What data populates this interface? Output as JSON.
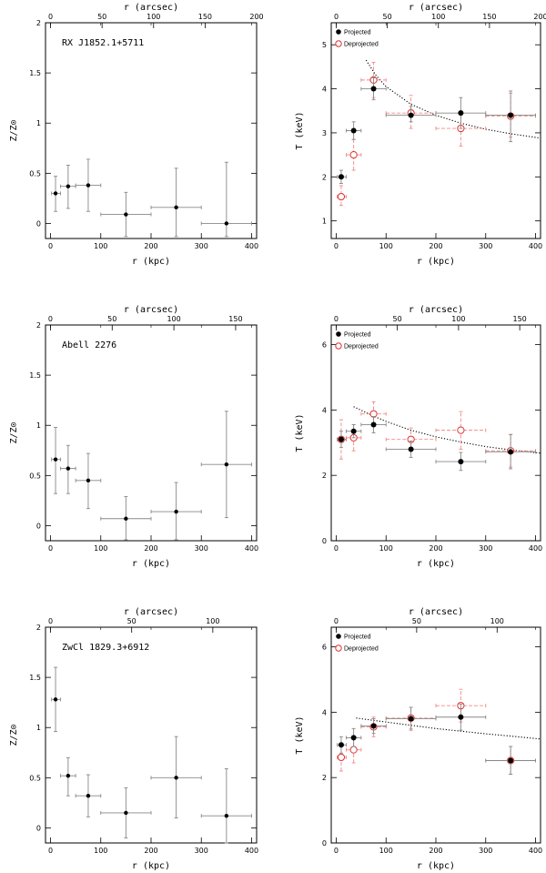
{
  "colors": {
    "projected": "#000000",
    "deprojected": "#e0302c",
    "errorbar_projected": "#888888",
    "errorbar_deprojected": "#f08a86",
    "model": "#000000"
  },
  "chart_data": [
    {
      "type": "scatter",
      "panel": "row1-left",
      "cluster_label": "RX J1852.1+5711",
      "xlabel": "r (kpc)",
      "x2label": "r (arcsec)",
      "ylabel": "Z/Z⊙",
      "xlim": [
        -10,
        410
      ],
      "ylim": [
        -0.15,
        2.0
      ],
      "xticks": [
        0,
        100,
        200,
        300,
        400
      ],
      "yticks": [
        0,
        0.5,
        1,
        1.5,
        2
      ],
      "ytick_labels": [
        "0",
        "0.5",
        "1",
        "1.5",
        "2"
      ],
      "x2lim": [
        -4.9,
        200
      ],
      "x2ticks": [
        0,
        50,
        100,
        150,
        200
      ],
      "series": [
        {
          "points": [
            {
              "x": 10,
              "y": 0.3,
              "xlo": 2,
              "xhi": 20,
              "ylo": 0.12,
              "yhi": 0.47
            },
            {
              "x": 35,
              "y": 0.37,
              "xlo": 20,
              "xhi": 50,
              "ylo": 0.15,
              "yhi": 0.58
            },
            {
              "x": 75,
              "y": 0.38,
              "xlo": 50,
              "xhi": 100,
              "ylo": 0.12,
              "yhi": 0.64
            },
            {
              "x": 150,
              "y": 0.09,
              "xlo": 100,
              "xhi": 200,
              "ylo": -0.13,
              "yhi": 0.31
            },
            {
              "x": 250,
              "y": 0.16,
              "xlo": 200,
              "xhi": 300,
              "ylo": -0.13,
              "yhi": 0.55
            },
            {
              "x": 350,
              "y": 0.0,
              "xlo": 300,
              "xhi": 400,
              "ylo": -0.13,
              "yhi": 0.61
            }
          ]
        }
      ]
    },
    {
      "type": "scatter",
      "panel": "row1-right",
      "xlabel": "r (kpc)",
      "x2label": "r (arcsec)",
      "ylabel": "T (keV)",
      "xlim": [
        -10,
        410
      ],
      "ylim": [
        0.6,
        5.5
      ],
      "xticks": [
        0,
        100,
        200,
        300,
        400
      ],
      "yticks": [
        1,
        2,
        3,
        4,
        5
      ],
      "ytick_labels": [
        "1",
        "2",
        "3",
        "4",
        "5"
      ],
      "x2lim": [
        -4.9,
        200
      ],
      "x2ticks": [
        0,
        50,
        100,
        150,
        200
      ],
      "legend": [
        "Projected",
        "Deprojected"
      ],
      "series": [
        {
          "name": "Projected",
          "points": [
            {
              "x": 10,
              "y": 2.0,
              "xlo": 2,
              "xhi": 20,
              "ylo": 1.85,
              "yhi": 2.15
            },
            {
              "x": 35,
              "y": 3.05,
              "xlo": 20,
              "xhi": 50,
              "ylo": 2.85,
              "yhi": 3.25
            },
            {
              "x": 75,
              "y": 4.0,
              "xlo": 50,
              "xhi": 100,
              "ylo": 3.75,
              "yhi": 4.25
            },
            {
              "x": 150,
              "y": 3.4,
              "xlo": 100,
              "xhi": 200,
              "ylo": 3.25,
              "yhi": 3.6
            },
            {
              "x": 250,
              "y": 3.45,
              "xlo": 200,
              "xhi": 300,
              "ylo": 3.1,
              "yhi": 3.8
            },
            {
              "x": 350,
              "y": 3.4,
              "xlo": 300,
              "xhi": 400,
              "ylo": 2.8,
              "yhi": 3.95
            }
          ]
        },
        {
          "name": "Deprojected",
          "points": [
            {
              "x": 10,
              "y": 1.55,
              "xlo": 2,
              "xhi": 20,
              "ylo": 1.35,
              "yhi": 1.8
            },
            {
              "x": 35,
              "y": 2.5,
              "xlo": 20,
              "xhi": 50,
              "ylo": 2.15,
              "yhi": 2.85
            },
            {
              "x": 75,
              "y": 4.2,
              "xlo": 50,
              "xhi": 100,
              "ylo": 3.8,
              "yhi": 4.6
            },
            {
              "x": 150,
              "y": 3.45,
              "xlo": 100,
              "xhi": 200,
              "ylo": 3.1,
              "yhi": 3.85
            },
            {
              "x": 250,
              "y": 3.1,
              "xlo": 200,
              "xhi": 300,
              "ylo": 2.7,
              "yhi": 3.5
            },
            {
              "x": 350,
              "y": 3.38,
              "xlo": 300,
              "xhi": 400,
              "ylo": 2.9,
              "yhi": 3.9
            }
          ]
        }
      ],
      "model_curve": [
        [
          60,
          4.65
        ],
        [
          80,
          4.3
        ],
        [
          100,
          4.05
        ],
        [
          150,
          3.65
        ],
        [
          200,
          3.4
        ],
        [
          250,
          3.22
        ],
        [
          300,
          3.08
        ],
        [
          350,
          2.98
        ],
        [
          410,
          2.88
        ]
      ]
    },
    {
      "type": "scatter",
      "panel": "row2-left",
      "cluster_label": "Abell 2276",
      "xlabel": "r (kpc)",
      "x2label": "r (arcsec)",
      "ylabel": "Z/Z⊙",
      "xlim": [
        -10,
        410
      ],
      "ylim": [
        -0.15,
        2.0
      ],
      "xticks": [
        0,
        100,
        200,
        300,
        400
      ],
      "yticks": [
        0,
        0.5,
        1,
        1.5,
        2
      ],
      "ytick_labels": [
        "0",
        "0.5",
        "1",
        "1.5",
        "2"
      ],
      "x2lim": [
        -4,
        167
      ],
      "x2ticks": [
        0,
        50,
        100,
        150
      ],
      "series": [
        {
          "points": [
            {
              "x": 10,
              "y": 0.66,
              "xlo": 2,
              "xhi": 20,
              "ylo": 0.32,
              "yhi": 0.98
            },
            {
              "x": 35,
              "y": 0.57,
              "xlo": 20,
              "xhi": 50,
              "ylo": 0.32,
              "yhi": 0.8
            },
            {
              "x": 75,
              "y": 0.45,
              "xlo": 50,
              "xhi": 100,
              "ylo": 0.17,
              "yhi": 0.72
            },
            {
              "x": 150,
              "y": 0.07,
              "xlo": 100,
              "xhi": 200,
              "ylo": -0.14,
              "yhi": 0.29
            },
            {
              "x": 250,
              "y": 0.14,
              "xlo": 200,
              "xhi": 300,
              "ylo": -0.14,
              "yhi": 0.43
            },
            {
              "x": 350,
              "y": 0.61,
              "xlo": 300,
              "xhi": 400,
              "ylo": 0.08,
              "yhi": 1.14
            }
          ]
        }
      ]
    },
    {
      "type": "scatter",
      "panel": "row2-right",
      "xlabel": "r (kpc)",
      "x2label": "r (arcsec)",
      "ylabel": "T (keV)",
      "xlim": [
        -10,
        410
      ],
      "ylim": [
        0,
        6.6
      ],
      "xticks": [
        0,
        100,
        200,
        300,
        400
      ],
      "yticks": [
        0,
        2,
        4,
        6
      ],
      "ytick_labels": [
        "0",
        "2",
        "4",
        "6"
      ],
      "x2lim": [
        -4,
        167
      ],
      "x2ticks": [
        0,
        50,
        100,
        150
      ],
      "legend": [
        "Projected",
        "Deprojected"
      ],
      "series": [
        {
          "name": "Projected",
          "points": [
            {
              "x": 10,
              "y": 3.1,
              "xlo": 2,
              "xhi": 20,
              "ylo": 2.85,
              "yhi": 3.35
            },
            {
              "x": 35,
              "y": 3.35,
              "xlo": 20,
              "xhi": 50,
              "ylo": 3.15,
              "yhi": 3.55
            },
            {
              "x": 75,
              "y": 3.55,
              "xlo": 50,
              "xhi": 100,
              "ylo": 3.3,
              "yhi": 3.8
            },
            {
              "x": 150,
              "y": 2.8,
              "xlo": 100,
              "xhi": 200,
              "ylo": 2.55,
              "yhi": 3.05
            },
            {
              "x": 250,
              "y": 2.42,
              "xlo": 200,
              "xhi": 300,
              "ylo": 2.15,
              "yhi": 2.7
            },
            {
              "x": 350,
              "y": 2.72,
              "xlo": 300,
              "xhi": 400,
              "ylo": 2.2,
              "yhi": 3.25
            }
          ]
        },
        {
          "name": "Deprojected",
          "points": [
            {
              "x": 10,
              "y": 3.1,
              "xlo": 2,
              "xhi": 20,
              "ylo": 2.5,
              "yhi": 3.7
            },
            {
              "x": 35,
              "y": 3.15,
              "xlo": 20,
              "xhi": 50,
              "ylo": 2.75,
              "yhi": 3.55
            },
            {
              "x": 75,
              "y": 3.88,
              "xlo": 50,
              "xhi": 100,
              "ylo": 3.5,
              "yhi": 4.25
            },
            {
              "x": 150,
              "y": 3.1,
              "xlo": 100,
              "xhi": 200,
              "ylo": 2.75,
              "yhi": 3.45
            },
            {
              "x": 250,
              "y": 3.38,
              "xlo": 200,
              "xhi": 300,
              "ylo": 2.8,
              "yhi": 3.95
            },
            {
              "x": 350,
              "y": 2.75,
              "xlo": 300,
              "xhi": 400,
              "ylo": 2.25,
              "yhi": 3.25
            }
          ]
        }
      ],
      "model_curve": [
        [
          35,
          4.1
        ],
        [
          60,
          3.92
        ],
        [
          80,
          3.78
        ],
        [
          100,
          3.65
        ],
        [
          150,
          3.38
        ],
        [
          200,
          3.18
        ],
        [
          250,
          3.02
        ],
        [
          300,
          2.88
        ],
        [
          350,
          2.78
        ],
        [
          410,
          2.68
        ]
      ]
    },
    {
      "type": "scatter",
      "panel": "row3-left",
      "cluster_label": "ZwCl 1829.3+6912",
      "xlabel": "r (kpc)",
      "x2label": "r (arcsec)",
      "ylabel": "Z/Z⊙",
      "xlim": [
        -10,
        410
      ],
      "ylim": [
        -0.15,
        2.0
      ],
      "xticks": [
        0,
        100,
        200,
        300,
        400
      ],
      "yticks": [
        0,
        0.5,
        1,
        1.5,
        2
      ],
      "ytick_labels": [
        "0",
        "0.5",
        "1",
        "1.5",
        "2"
      ],
      "x2lim": [
        -3.1,
        127
      ],
      "x2ticks": [
        0,
        50,
        100
      ],
      "series": [
        {
          "points": [
            {
              "x": 10,
              "y": 1.28,
              "xlo": 2,
              "xhi": 20,
              "ylo": 0.96,
              "yhi": 1.6
            },
            {
              "x": 35,
              "y": 0.52,
              "xlo": 20,
              "xhi": 50,
              "ylo": 0.32,
              "yhi": 0.7
            },
            {
              "x": 75,
              "y": 0.32,
              "xlo": 50,
              "xhi": 100,
              "ylo": 0.11,
              "yhi": 0.53
            },
            {
              "x": 150,
              "y": 0.15,
              "xlo": 100,
              "xhi": 200,
              "ylo": -0.1,
              "yhi": 0.4
            },
            {
              "x": 250,
              "y": 0.5,
              "xlo": 200,
              "xhi": 300,
              "ylo": 0.1,
              "yhi": 0.91
            },
            {
              "x": 350,
              "y": 0.12,
              "xlo": 300,
              "xhi": 400,
              "ylo": -0.15,
              "yhi": 0.59
            }
          ]
        }
      ]
    },
    {
      "type": "scatter",
      "panel": "row3-right",
      "xlabel": "r (kpc)",
      "x2label": "r (arcsec)",
      "ylabel": "T (keV)",
      "xlim": [
        -10,
        410
      ],
      "ylim": [
        0,
        6.6
      ],
      "xticks": [
        0,
        100,
        200,
        300,
        400
      ],
      "yticks": [
        0,
        2,
        4,
        6
      ],
      "ytick_labels": [
        "0",
        "2",
        "4",
        "6"
      ],
      "x2lim": [
        -3.1,
        127
      ],
      "x2ticks": [
        0,
        50,
        100
      ],
      "legend": [
        "Projected",
        "Deprojected"
      ],
      "series": [
        {
          "name": "Projected",
          "points": [
            {
              "x": 10,
              "y": 3.0,
              "xlo": 2,
              "xhi": 20,
              "ylo": 2.75,
              "yhi": 3.25
            },
            {
              "x": 35,
              "y": 3.22,
              "xlo": 20,
              "xhi": 50,
              "ylo": 2.95,
              "yhi": 3.5
            },
            {
              "x": 75,
              "y": 3.58,
              "xlo": 50,
              "xhi": 100,
              "ylo": 3.35,
              "yhi": 3.8
            },
            {
              "x": 150,
              "y": 3.8,
              "xlo": 100,
              "xhi": 200,
              "ylo": 3.45,
              "yhi": 4.15
            },
            {
              "x": 250,
              "y": 3.85,
              "xlo": 200,
              "xhi": 300,
              "ylo": 3.45,
              "yhi": 4.25
            },
            {
              "x": 350,
              "y": 2.52,
              "xlo": 300,
              "xhi": 400,
              "ylo": 2.1,
              "yhi": 2.95
            }
          ]
        },
        {
          "name": "Deprojected",
          "points": [
            {
              "x": 10,
              "y": 2.62,
              "xlo": 2,
              "xhi": 20,
              "ylo": 2.2,
              "yhi": 3.05
            },
            {
              "x": 35,
              "y": 2.85,
              "xlo": 20,
              "xhi": 50,
              "ylo": 2.45,
              "yhi": 3.25
            },
            {
              "x": 75,
              "y": 3.55,
              "xlo": 50,
              "xhi": 100,
              "ylo": 3.25,
              "yhi": 3.85
            },
            {
              "x": 150,
              "y": 3.82,
              "xlo": 100,
              "xhi": 200,
              "ylo": 3.5,
              "yhi": 4.15
            },
            {
              "x": 250,
              "y": 4.2,
              "xlo": 200,
              "xhi": 300,
              "ylo": 3.7,
              "yhi": 4.7
            },
            {
              "x": 350,
              "y": 2.52,
              "xlo": 300,
              "xhi": 400,
              "ylo": 2.1,
              "yhi": 2.95
            }
          ]
        }
      ],
      "model_curve": [
        [
          40,
          3.82
        ],
        [
          80,
          3.74
        ],
        [
          120,
          3.66
        ],
        [
          160,
          3.58
        ],
        [
          200,
          3.5
        ],
        [
          250,
          3.42
        ],
        [
          300,
          3.34
        ],
        [
          350,
          3.27
        ],
        [
          410,
          3.18
        ]
      ]
    }
  ]
}
